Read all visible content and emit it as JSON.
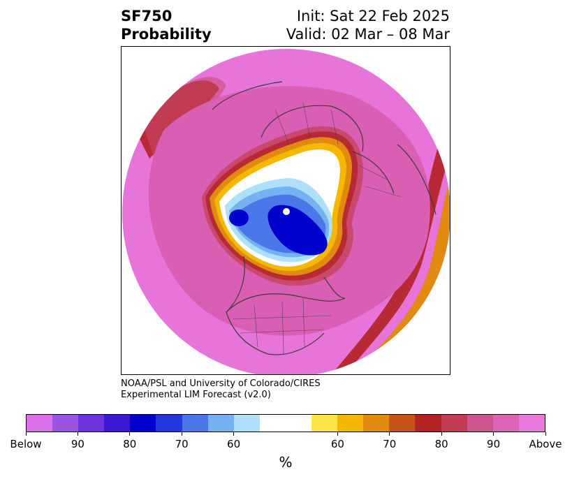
{
  "header": {
    "variable": "SF750",
    "product": "Probability",
    "init": "Init: Sat 22 Feb 2025",
    "valid": "Valid: 02 Mar – 08 Mar"
  },
  "credit": {
    "line1": "NOAA/PSL and University of Colorado/CIRES",
    "line2": "Experimental LIM Forecast (v2.0)"
  },
  "colorbar": {
    "colors": [
      "#d970e8",
      "#9b55e0",
      "#6a33db",
      "#3a18d6",
      "#0000cc",
      "#2438dd",
      "#4a78e8",
      "#74b2f2",
      "#aee0fb",
      "#ffffff",
      "#ffffff",
      "#ffe44a",
      "#f5b800",
      "#e08a10",
      "#c75518",
      "#b42424",
      "#c23b52",
      "#cc5590",
      "#dc64b4",
      "#e878dc"
    ],
    "tick_labels": [
      "Below",
      "90",
      "80",
      "70",
      "60",
      "60",
      "70",
      "80",
      "90",
      "Above"
    ],
    "units": "%"
  },
  "map": {
    "region": "Northern Hemisphere polar stereographic",
    "fill_colors": {
      "above_max": "#e674d9",
      "above_90": "#d85fb3",
      "above_80": "#c8486e",
      "above_70": "#b72a33",
      "above_60_70": "#e08a10",
      "above_55": "#f5b800",
      "near_50": "#ffffff",
      "below_60": "#aee0fb",
      "below_70": "#74b2f2",
      "below_80": "#4a78e8",
      "below_90": "#0000cc"
    }
  }
}
